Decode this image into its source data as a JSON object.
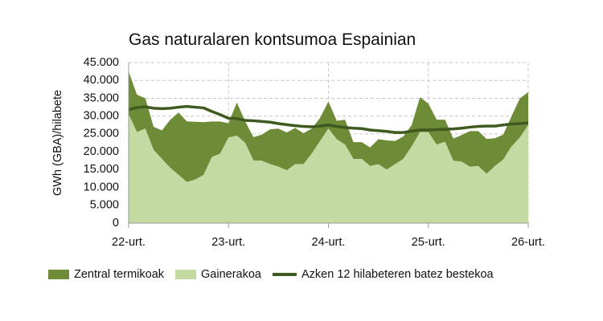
{
  "chart_data": {
    "type": "area",
    "title": "Gas naturalaren kontsumoa Espainian",
    "ylabel": "GWh (GBA)/hilabete",
    "xlabel": "",
    "ylim": [
      0,
      45000
    ],
    "y_ticks": [
      "0",
      "5.000",
      "10.000",
      "15.000",
      "20.000",
      "25.000",
      "30.000",
      "35.000",
      "40.000",
      "45.000"
    ],
    "y_tick_values": [
      0,
      5000,
      10000,
      15000,
      20000,
      25000,
      30000,
      35000,
      40000,
      45000
    ],
    "x_ticks": [
      "22-urt.",
      "23-urt.",
      "24-urt.",
      "25-urt.",
      "26-urt."
    ],
    "x_tick_index": [
      0,
      12,
      24,
      36,
      48
    ],
    "grid": true,
    "legend_position": "bottom",
    "stacked": true,
    "series": [
      {
        "name": "Gainerakoa",
        "kind": "area",
        "color": "#c3dba3",
        "values": [
          30500,
          25500,
          26500,
          20500,
          18000,
          15500,
          13500,
          11500,
          12200,
          13500,
          18500,
          19500,
          24000,
          24500,
          22500,
          17500,
          17500,
          16500,
          15800,
          14800,
          16500,
          16500,
          19500,
          23000,
          26500,
          23500,
          22000,
          18000,
          18000,
          16000,
          16500,
          15000,
          16500,
          18000,
          21500,
          25500,
          25500,
          22000,
          22800,
          17500,
          17200,
          15800,
          16000,
          13800,
          16000,
          17800,
          21500,
          24000,
          27500
        ]
      },
      {
        "name": "Zentral termikoak",
        "kind": "area",
        "color": "#6e8c37",
        "values": [
          12000,
          10500,
          8500,
          6500,
          8000,
          13500,
          17500,
          17000,
          16200,
          14800,
          10000,
          9000,
          4000,
          9300,
          6000,
          6600,
          7300,
          9800,
          10700,
          10600,
          10200,
          8700,
          7000,
          6500,
          7600,
          5200,
          7000,
          4700,
          4700,
          5200,
          7000,
          8200,
          6500,
          6300,
          6000,
          9800,
          8000,
          7000,
          6200,
          6200,
          7500,
          10000,
          9800,
          9800,
          7800,
          7000,
          8500,
          11000,
          9200
        ]
      },
      {
        "name": "Azken 12 hilabeteren batez bestekoa",
        "kind": "line",
        "color": "#3e5a1e",
        "values": [
          31800,
          32400,
          32600,
          32200,
          32100,
          32200,
          32500,
          32700,
          32500,
          32300,
          31300,
          30400,
          29400,
          29300,
          28800,
          28700,
          28500,
          28300,
          27900,
          27600,
          27300,
          27100,
          27000,
          27200,
          27500,
          27100,
          26800,
          26600,
          26500,
          26100,
          25900,
          25700,
          25400,
          25400,
          25800,
          26100,
          26100,
          26200,
          26300,
          26400,
          26600,
          26900,
          27100,
          27200,
          27200,
          27500,
          27800,
          27900,
          28100
        ]
      }
    ]
  }
}
